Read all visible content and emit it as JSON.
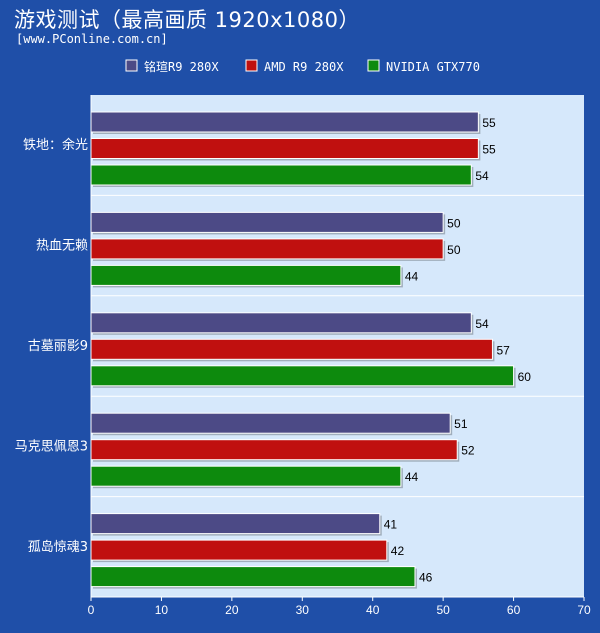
{
  "header": {
    "title": "游戏测试（最高画质 1920x1080）",
    "source": "[www.PConline.com.cn]"
  },
  "colors": {
    "background": "#1f4fa8",
    "plot_background": "#d6e8fb",
    "series": [
      "#4c4a86",
      "#c0100f",
      "#0d8a0d"
    ]
  },
  "chart_data": {
    "type": "bar",
    "orientation": "horizontal",
    "categories": [
      "铁地：余光",
      "热血无赖",
      "古墓丽影9",
      "马克思佩恩3",
      "孤岛惊魂3"
    ],
    "series": [
      {
        "name": "铭瑄R9 280X",
        "values": [
          55,
          50,
          54,
          51,
          41
        ]
      },
      {
        "name": "AMD R9 280X",
        "values": [
          55,
          50,
          57,
          52,
          42
        ]
      },
      {
        "name": "NVIDIA GTX770",
        "values": [
          54,
          44,
          60,
          44,
          46
        ]
      }
    ],
    "xlim": [
      0,
      70
    ],
    "xticks": [
      0,
      10,
      20,
      30,
      40,
      50,
      60,
      70
    ],
    "legend": "top",
    "grid": false
  }
}
